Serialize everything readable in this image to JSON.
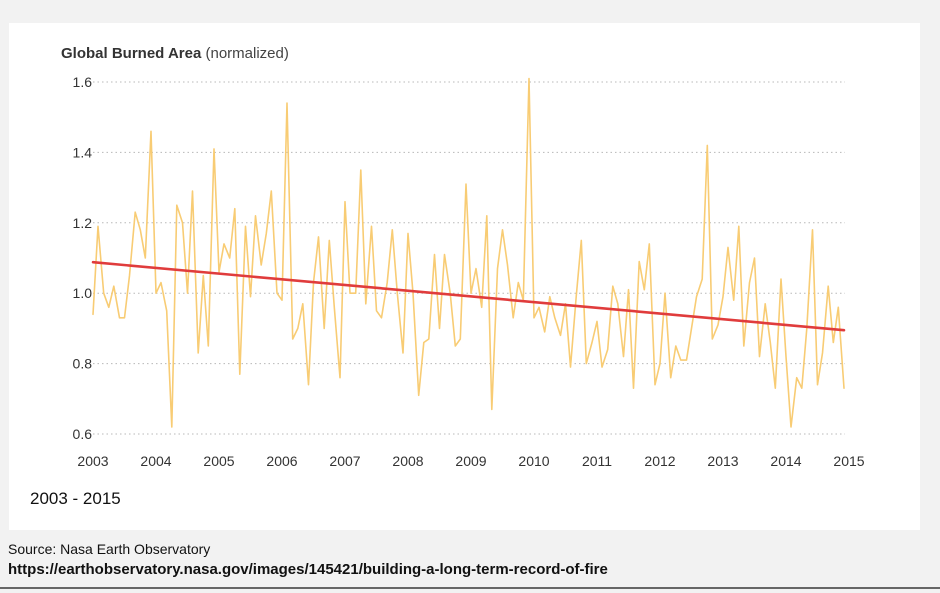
{
  "chart_data": {
    "type": "line",
    "title": "Global Burned Area",
    "subtitle": "(normalized)",
    "xlabel": "",
    "ylabel": "",
    "xlim": [
      2003,
      2015
    ],
    "ylim": [
      0.6,
      1.6
    ],
    "x_ticks": [
      "2003",
      "2004",
      "2005",
      "2006",
      "2007",
      "2008",
      "2009",
      "2010",
      "2011",
      "2012",
      "2013",
      "2014",
      "2015"
    ],
    "y_ticks": [
      "0.6",
      "0.8",
      "1.0",
      "1.2",
      "1.4",
      "1.6"
    ],
    "grid": "horizontal dotted",
    "series": [
      {
        "color": "#f8cc74",
        "x": [
          2003.0,
          2003.08,
          2003.17,
          2003.25,
          2003.33,
          2003.42,
          2003.5,
          2003.58,
          2003.67,
          2003.75,
          2003.83,
          2003.92,
          2004.0,
          2004.08,
          2004.17,
          2004.25,
          2004.33,
          2004.42,
          2004.5,
          2004.58,
          2004.67,
          2004.75,
          2004.83,
          2004.92,
          2005.0,
          2005.08,
          2005.17,
          2005.25,
          2005.33,
          2005.42,
          2005.5,
          2005.58,
          2005.67,
          2005.75,
          2005.83,
          2005.92,
          2006.0,
          2006.08,
          2006.17,
          2006.25,
          2006.33,
          2006.42,
          2006.5,
          2006.58,
          2006.67,
          2006.75,
          2006.83,
          2006.92,
          2007.0,
          2007.08,
          2007.17,
          2007.25,
          2007.33,
          2007.42,
          2007.5,
          2007.58,
          2007.67,
          2007.75,
          2007.83,
          2007.92,
          2008.0,
          2008.08,
          2008.17,
          2008.25,
          2008.33,
          2008.42,
          2008.5,
          2008.58,
          2008.67,
          2008.75,
          2008.83,
          2008.92,
          2009.0,
          2009.08,
          2009.17,
          2009.25,
          2009.33,
          2009.42,
          2009.5,
          2009.58,
          2009.67,
          2009.75,
          2009.83,
          2009.92,
          2010.0,
          2010.08,
          2010.17,
          2010.25,
          2010.33,
          2010.42,
          2010.5,
          2010.58,
          2010.67,
          2010.75,
          2010.83,
          2010.92,
          2011.0,
          2011.08,
          2011.17,
          2011.25,
          2011.33,
          2011.42,
          2011.5,
          2011.58,
          2011.67,
          2011.75,
          2011.83,
          2011.92,
          2012.0,
          2012.08,
          2012.17,
          2012.25,
          2012.33,
          2012.42,
          2012.5,
          2012.58,
          2012.67,
          2012.75,
          2012.83,
          2012.92,
          2013.0,
          2013.08,
          2013.17,
          2013.25,
          2013.33,
          2013.42,
          2013.5,
          2013.58,
          2013.67,
          2013.75,
          2013.83,
          2013.92,
          2014.0,
          2014.08,
          2014.17,
          2014.25,
          2014.33,
          2014.42,
          2014.5,
          2014.58,
          2014.67,
          2014.75,
          2014.83,
          2014.92
        ],
        "y": [
          0.94,
          1.19,
          1.0,
          0.96,
          1.02,
          0.93,
          0.93,
          1.05,
          1.23,
          1.18,
          1.1,
          1.46,
          1.0,
          1.03,
          0.95,
          0.62,
          1.25,
          1.2,
          1.0,
          1.29,
          0.83,
          1.05,
          0.85,
          1.41,
          1.06,
          1.14,
          1.1,
          1.24,
          0.77,
          1.19,
          0.99,
          1.22,
          1.08,
          1.17,
          1.29,
          1.0,
          0.98,
          1.54,
          0.87,
          0.9,
          0.97,
          0.74,
          1.03,
          1.16,
          0.9,
          1.15,
          0.96,
          0.76,
          1.26,
          1.0,
          1.0,
          1.35,
          0.97,
          1.19,
          0.95,
          0.93,
          1.03,
          1.18,
          1.0,
          0.83,
          1.17,
          1.0,
          0.71,
          0.86,
          0.87,
          1.11,
          0.9,
          1.11,
          1.0,
          0.85,
          0.87,
          1.31,
          1.0,
          1.07,
          0.96,
          1.22,
          0.67,
          1.07,
          1.18,
          1.08,
          0.93,
          1.03,
          0.98,
          1.61,
          0.93,
          0.96,
          0.89,
          0.99,
          0.93,
          0.88,
          0.97,
          0.79,
          0.99,
          1.15,
          0.8,
          0.86,
          0.92,
          0.79,
          0.84,
          1.02,
          0.97,
          0.82,
          1.01,
          0.73,
          1.09,
          1.01,
          1.14,
          0.74,
          0.8,
          1.0,
          0.76,
          0.85,
          0.81,
          0.81,
          0.9,
          0.99,
          1.04,
          1.42,
          0.87,
          0.91,
          0.99,
          1.13,
          0.98,
          1.19,
          0.85,
          1.03,
          1.1,
          0.82,
          0.97,
          0.86,
          0.73,
          1.04,
          0.82,
          0.62,
          0.76,
          0.73,
          0.9,
          1.18,
          0.74,
          0.83,
          1.02,
          0.86,
          0.96,
          0.73
        ]
      },
      {
        "color": "#e03c3c",
        "x": [
          2003.0,
          2014.92
        ],
        "y": [
          1.088,
          0.895
        ]
      }
    ]
  },
  "labels": {
    "date_range": "2003 - 2015",
    "source": "Source: Nasa Earth Observatory",
    "url": "https://earthobservatory.nasa.gov/images/145421/building-a-long-term-record-of-fire"
  }
}
